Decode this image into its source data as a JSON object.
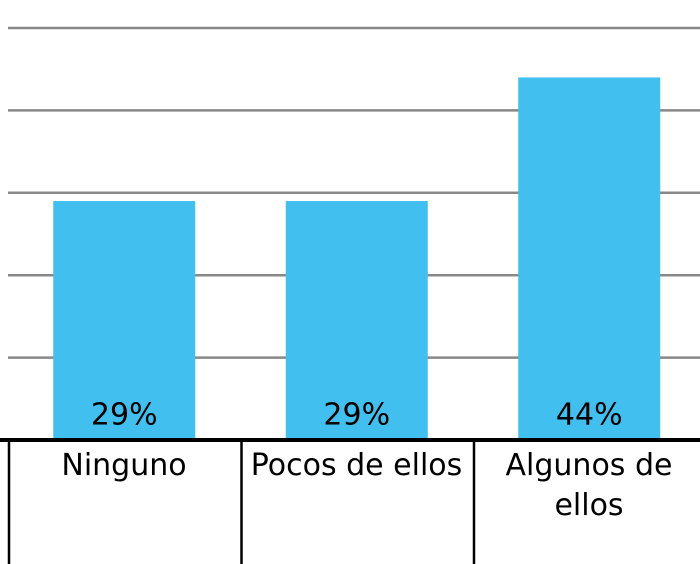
{
  "chart_data": {
    "type": "bar",
    "categories": [
      "Ninguno",
      "Pocos de ellos",
      "Algunos de ellos"
    ],
    "values": [
      29,
      29,
      44
    ],
    "value_labels": [
      "29%",
      "29%",
      "44%"
    ],
    "color": "#41bfee",
    "ylim": [
      0,
      50
    ],
    "yticks": [
      0,
      10,
      20,
      30,
      40,
      50
    ],
    "grid": true
  }
}
